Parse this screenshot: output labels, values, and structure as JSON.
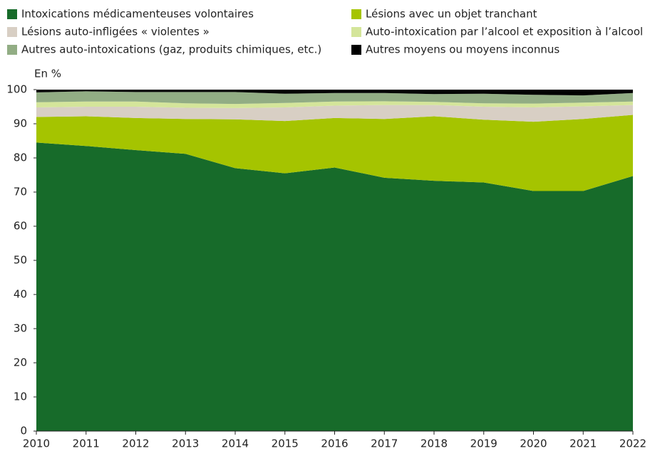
{
  "chart_data": {
    "type": "stacked_area",
    "y_unit_label": "En %",
    "categories": [
      "2010",
      "2011",
      "2012",
      "2013",
      "2014",
      "2015",
      "2016",
      "2017",
      "2018",
      "2019",
      "2020",
      "2021",
      "2022"
    ],
    "series": [
      {
        "name": "Intoxications médicamenteuses volontaires",
        "color": "#176b2a",
        "values": [
          84.5,
          83.5,
          82.3,
          81.2,
          77,
          75.5,
          77.2,
          74.2,
          73.3,
          72.8,
          70.3,
          70.3,
          74.7
        ]
      },
      {
        "name": "Lésions avec un objet tranchant",
        "color": "#a5c400",
        "values": [
          7.5,
          8.7,
          9.4,
          10.2,
          14.3,
          15.3,
          14.5,
          17.2,
          18.9,
          18.4,
          20.3,
          21.1,
          17.9
        ]
      },
      {
        "name": "Lésions auto-infligées « violentes »",
        "color": "#d8cfc4",
        "values": [
          2.8,
          2.8,
          3.3,
          3.3,
          3.3,
          4.0,
          3.6,
          4.1,
          3.3,
          3.8,
          4.2,
          3.7,
          2.9
        ]
      },
      {
        "name": "Auto-intoxication par l’alcool et exposition à l’alcool",
        "color": "#d4e59a",
        "values": [
          1.5,
          1.5,
          1.5,
          1.3,
          1.2,
          1.3,
          1.2,
          1.1,
          0.9,
          1.0,
          1.1,
          1.1,
          1.0
        ]
      },
      {
        "name": "Autres auto-intoxications (gaz, produits chimiques, etc.)",
        "color": "#92ad84",
        "values": [
          2.9,
          3.0,
          2.8,
          3.3,
          3.5,
          2.7,
          2.5,
          2.4,
          2.3,
          2.8,
          2.6,
          2.1,
          2.5
        ]
      },
      {
        "name": "Autres moyens ou moyens inconnus",
        "color": "#000000",
        "values": [
          0.8,
          0.5,
          0.7,
          0.7,
          0.7,
          1.2,
          1.0,
          1.0,
          1.3,
          1.2,
          1.5,
          1.7,
          1.0
        ]
      }
    ],
    "ylim": [
      0,
      100
    ],
    "yticks": [
      0,
      10,
      20,
      30,
      40,
      50,
      60,
      70,
      80,
      90,
      100
    ]
  }
}
